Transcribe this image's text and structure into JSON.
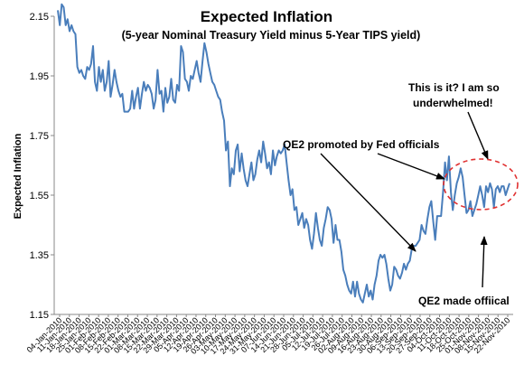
{
  "chart_data": {
    "type": "line",
    "title": "Expected Inflation",
    "subtitle": "(5-year Nominal Treasury Yield minus 5-Year TIPS yield)",
    "xlabel": "",
    "ylabel": "Expected Inflation",
    "ylim": [
      1.15,
      2.15
    ],
    "yticks": [
      "2.15",
      "1.95",
      "1.75",
      "1.55",
      "1.35",
      "1.15"
    ],
    "ytick_values": [
      2.15,
      1.95,
      1.75,
      1.55,
      1.35,
      1.15
    ],
    "grid": false,
    "legend": "none",
    "line_color": "#4a7ebb",
    "x_tick_labels": [
      "04-Jan-2010",
      "11-Jan-2010",
      "18-Jan-2010",
      "25-Jan-2010",
      "01-Feb-2010",
      "08-Feb-2010",
      "15-Feb-2010",
      "22-Feb-2010",
      "01-Mar-2010",
      "08-Mar-2010",
      "15-Mar-2010",
      "22-Mar-2010",
      "29-Mar-2010",
      "05-Apr-2010",
      "12-Apr-2010",
      "19-Apr-2010",
      "26-Apr-2010",
      "03-May-2010",
      "10-May-2010",
      "17-May-2010",
      "24-May-2010",
      "31-May-2010",
      "07-Jun-2010",
      "14-Jun-2010",
      "21-Jun-2010",
      "28-Jun-2010",
      "05-Jul-2010",
      "12-Jul-2010",
      "19-Jul-2010",
      "26-Jul-2010",
      "02-Aug-2010",
      "09-Aug-2010",
      "16-Aug-2010",
      "23-Aug-2010",
      "30-Aug-2010",
      "06-Sep-2010",
      "13-Sep-2010",
      "20-Sep-2010",
      "27-Sep-2010",
      "04-Oct-2010",
      "11-Oct-2010",
      "18-Oct-2010",
      "25-Oct-2010",
      "01-Nov-2010",
      "08-Nov-2010",
      "15-Nov-2010",
      "22-Nov-2010"
    ],
    "series": [
      {
        "values": [
          2.17,
          2.12,
          2.19,
          2.18,
          2.12,
          2.14,
          2.1,
          2.12,
          2.1,
          2.09,
          1.98,
          1.96,
          1.97,
          1.95,
          1.94,
          1.98,
          1.97,
          1.99,
          2.05,
          1.93,
          1.9,
          1.98,
          1.93,
          1.97,
          1.9,
          1.93,
          2.0,
          1.88,
          1.92,
          1.97,
          1.93,
          1.9,
          1.88,
          1.89,
          1.83,
          1.83,
          1.83,
          1.84,
          1.9,
          1.84,
          1.88,
          1.91,
          1.84,
          1.89,
          1.93,
          1.9,
          1.92,
          1.91,
          1.89,
          1.84,
          1.87,
          1.97,
          1.89,
          1.9,
          1.83,
          1.91,
          1.86,
          1.88,
          1.94,
          1.87,
          1.86,
          1.92,
          1.9,
          2.05,
          2.03,
          1.94,
          1.93,
          1.9,
          1.95,
          1.94,
          1.97,
          2.0,
          1.96,
          1.93,
          2.0,
          2.06,
          2.03,
          1.99,
          1.96,
          1.93,
          1.92,
          1.9,
          1.88,
          1.87,
          1.83,
          1.8,
          1.7,
          1.73,
          1.58,
          1.64,
          1.62,
          1.7,
          1.72,
          1.63,
          1.69,
          1.64,
          1.6,
          1.58,
          1.62,
          1.66,
          1.6,
          1.62,
          1.67,
          1.7,
          1.66,
          1.73,
          1.69,
          1.64,
          1.66,
          1.62,
          1.7,
          1.65,
          1.68,
          1.7,
          1.69,
          1.7,
          1.72,
          1.66,
          1.6,
          1.55,
          1.57,
          1.5,
          1.51,
          1.45,
          1.47,
          1.49,
          1.44,
          1.47,
          1.45,
          1.4,
          1.37,
          1.42,
          1.49,
          1.44,
          1.4,
          1.38,
          1.44,
          1.47,
          1.51,
          1.5,
          1.47,
          1.39,
          1.45,
          1.4,
          1.4,
          1.36,
          1.3,
          1.28,
          1.25,
          1.23,
          1.22,
          1.26,
          1.21,
          1.26,
          1.22,
          1.2,
          1.19,
          1.22,
          1.25,
          1.21,
          1.23,
          1.2,
          1.25,
          1.28,
          1.33,
          1.35,
          1.34,
          1.35,
          1.32,
          1.27,
          1.23,
          1.25,
          1.31,
          1.3,
          1.28,
          1.27,
          1.29,
          1.32,
          1.3,
          1.32,
          1.33,
          1.37,
          1.38,
          1.38,
          1.39,
          1.4,
          1.45,
          1.43,
          1.42,
          1.47,
          1.51,
          1.53,
          1.46,
          1.4,
          1.48,
          1.48,
          1.48,
          1.56,
          1.66,
          1.6,
          1.68,
          1.56,
          1.5,
          1.55,
          1.59,
          1.61,
          1.64,
          1.61,
          1.55,
          1.49,
          1.5,
          1.53,
          1.48,
          1.5,
          1.52,
          1.55,
          1.58,
          1.55,
          1.51,
          1.58,
          1.56,
          1.59,
          1.57,
          1.51,
          1.57,
          1.58,
          1.56,
          1.58,
          1.58,
          1.55,
          1.57,
          1.59
        ]
      }
    ],
    "annotations": [
      {
        "text": "QE2 promoted by Fed officials"
      },
      {
        "text": "This is it? I am so"
      },
      {
        "text": "underwhelmed!"
      },
      {
        "text": "QE2 made offiical"
      }
    ]
  }
}
